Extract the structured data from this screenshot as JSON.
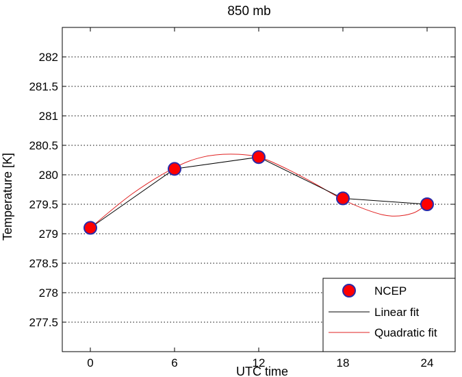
{
  "chart_data": {
    "type": "line",
    "title": "850 mb",
    "xlabel": "UTC time",
    "ylabel": "Temperature [K]",
    "xlim": [
      -2,
      26
    ],
    "ylim": [
      277,
      282.5
    ],
    "xticks": [
      0,
      6,
      12,
      18,
      24
    ],
    "yticks": [
      277.5,
      278,
      278.5,
      279,
      279.5,
      280,
      280.5,
      281,
      281.5,
      282
    ],
    "x_tick_labels": [
      "0",
      "6",
      "12",
      "18",
      "24"
    ],
    "y_tick_labels": [
      "277.5",
      "278",
      "278.5",
      "279",
      "279.5",
      "280",
      "280.5",
      "281",
      "281.5",
      "282"
    ],
    "grid": "horizontal dotted",
    "legend_position": "bottom-right",
    "series": [
      {
        "name": "NCEP",
        "kind": "markers",
        "marker_color": "#ff0000",
        "edge_color": "#2a2aa8",
        "x": [
          0,
          6,
          12,
          18,
          24
        ],
        "y": [
          279.1,
          280.1,
          280.3,
          279.6,
          279.5
        ]
      },
      {
        "name": "Linear fit",
        "kind": "line",
        "color": "#000000",
        "x": [
          0,
          6,
          12,
          18,
          24
        ],
        "y": [
          279.1,
          280.1,
          280.3,
          279.6,
          279.5
        ]
      },
      {
        "name": "Quadratic fit",
        "kind": "line",
        "color": "#e02020",
        "x": [
          0,
          3,
          6,
          8,
          10,
          12,
          14,
          16,
          18,
          20,
          21.5,
          23,
          24
        ],
        "y": [
          279.1,
          279.68,
          280.12,
          280.3,
          280.35,
          280.3,
          280.1,
          279.85,
          279.58,
          279.38,
          279.3,
          279.35,
          279.5
        ]
      }
    ]
  }
}
